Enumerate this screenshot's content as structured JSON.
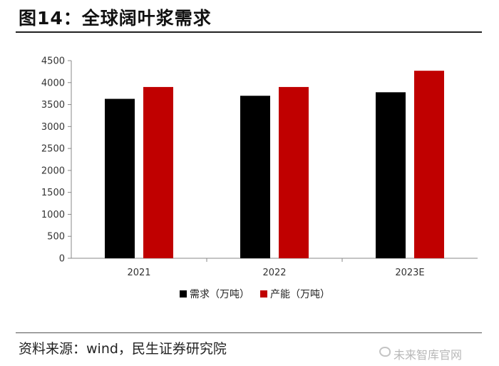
{
  "title": "图14：全球阔叶浆需求",
  "source": "资料来源：wind，民生证券研究院",
  "watermark": "未来智库官网",
  "colors": {
    "demand": "#000000",
    "capacity": "#c00000"
  },
  "chart_data": {
    "type": "bar",
    "categories": [
      "2021",
      "2022",
      "2023E"
    ],
    "series": [
      {
        "name": "需求（万吨）",
        "values": [
          3630,
          3700,
          3780
        ]
      },
      {
        "name": "产能（万吨）",
        "values": [
          3900,
          3900,
          4270
        ]
      }
    ],
    "yticks": [
      0,
      500,
      1000,
      1500,
      2000,
      2500,
      3000,
      3500,
      4000,
      4500
    ],
    "ylim": [
      0,
      4500
    ],
    "legend": "bottom-center",
    "grid": false
  }
}
